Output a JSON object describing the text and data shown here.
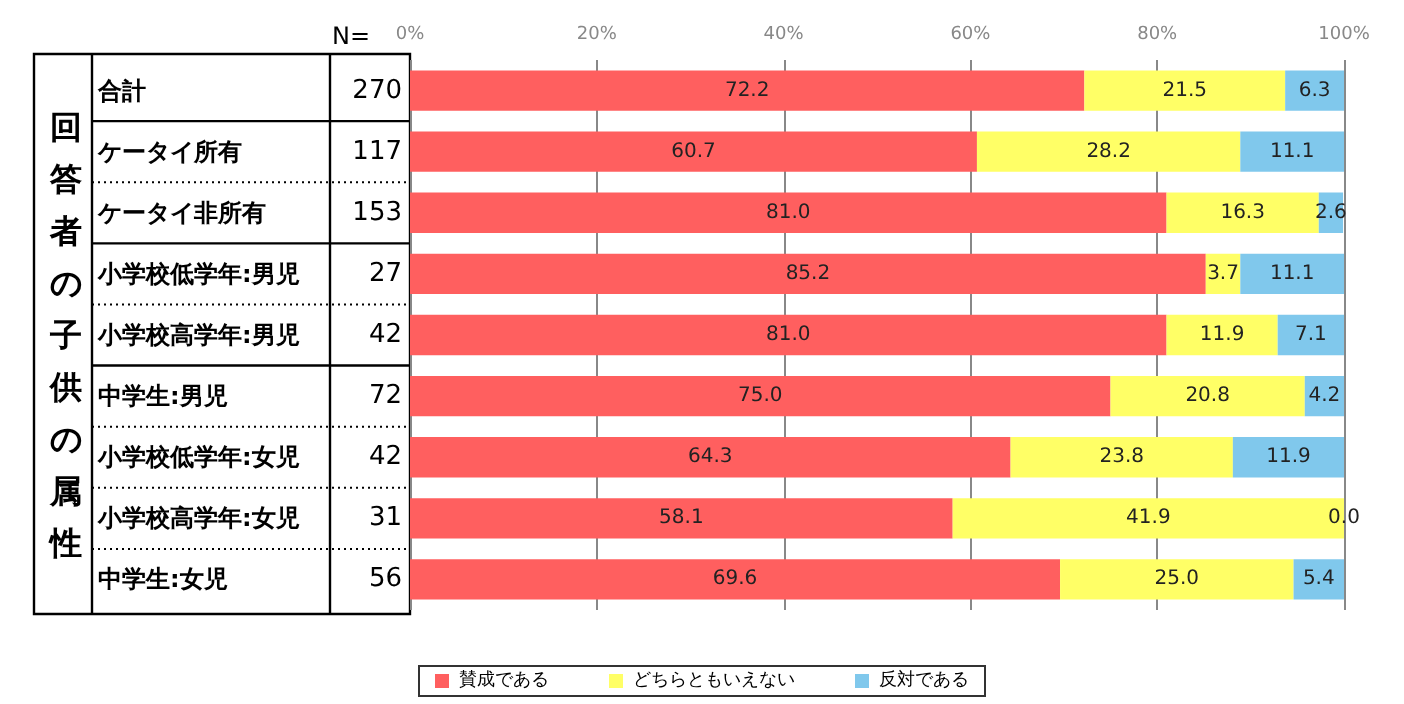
{
  "chart_data": {
    "type": "bar",
    "orientation": "horizontal",
    "stacked": true,
    "ylabel": "回答者の子供の属性",
    "categories": [
      "合計",
      "ケータイ所有",
      "ケータイ非所有",
      "小学校低学年:男児",
      "小学校高学年:男児",
      "中学生:男児",
      "小学校低学年:女児",
      "小学校高学年:女児",
      "中学生:女児"
    ],
    "series": [
      {
        "name": "賛成である",
        "color": "#ff5f5f",
        "values": [
          72.2,
          60.7,
          81.0,
          85.2,
          81.0,
          75.0,
          64.3,
          58.1,
          69.6
        ],
        "value_labels": [
          "72.2",
          "60.7",
          "81.0",
          "85.2",
          "81.0",
          "75.0",
          "64.3",
          "58.1",
          "69.6"
        ]
      },
      {
        "name": "どちらともいえない",
        "color": "#ffff66",
        "values": [
          21.5,
          28.2,
          16.3,
          3.7,
          11.9,
          20.8,
          23.8,
          41.9,
          25.0
        ],
        "value_labels": [
          "21.5",
          "28.2",
          "16.3",
          "3.7",
          "11.9",
          "20.8",
          "23.8",
          "41.9",
          "25.0"
        ]
      },
      {
        "name": "反対である",
        "color": "#80c8ec",
        "values": [
          6.3,
          11.1,
          2.6,
          11.1,
          7.1,
          4.2,
          11.9,
          0.0,
          5.4
        ],
        "value_labels": [
          "6.3",
          "11.1",
          "2.6",
          "11.1",
          "7.1",
          "4.2",
          "11.9",
          "0.0",
          "5.4"
        ]
      }
    ],
    "xlim": [
      0,
      100
    ],
    "xticks": [
      {
        "value": 0,
        "label": "0%"
      },
      {
        "value": 20,
        "label": "20%"
      },
      {
        "value": 40,
        "label": "40%"
      },
      {
        "value": 60,
        "label": "60%"
      },
      {
        "value": 80,
        "label": "80%"
      },
      {
        "value": 100,
        "label": "100%"
      }
    ],
    "grid": "x",
    "legend": "bottom",
    "annotations": [
      "N=",
      "270",
      "117",
      "153",
      "27",
      "42",
      "72",
      "42",
      "31",
      "56"
    ]
  }
}
